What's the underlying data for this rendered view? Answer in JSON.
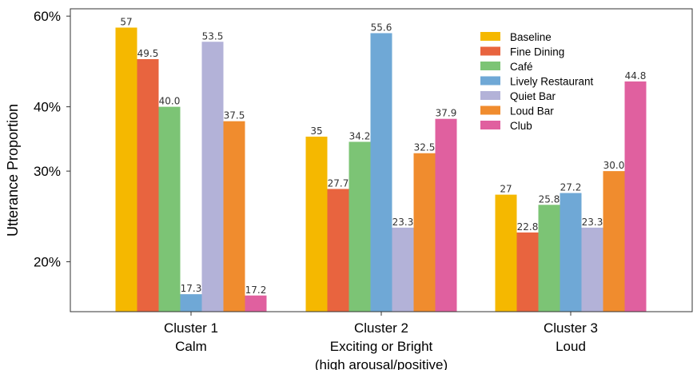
{
  "chart_data": {
    "type": "bar",
    "ylabel": "Utterance Proportion",
    "xlabel": "",
    "y_scale": "log",
    "ylim": [
      16,
      62
    ],
    "yticks": [
      {
        "value": 20,
        "label": "20%"
      },
      {
        "value": 30,
        "label": "30%"
      },
      {
        "value": 40,
        "label": "40%"
      },
      {
        "value": 60,
        "label": "60%"
      }
    ],
    "categories": [
      [
        "Cluster 1",
        "Calm"
      ],
      [
        "Cluster 2",
        "Exciting or Bright",
        "(high arousal/positive)"
      ],
      [
        "Cluster 3",
        "Loud"
      ]
    ],
    "series": [
      {
        "name": "Baseline",
        "color": "#f5b800",
        "values": [
          57,
          35,
          27
        ],
        "labels": [
          "57",
          "35",
          "27"
        ]
      },
      {
        "name": "Fine Dining",
        "color": "#e8643f",
        "values": [
          49.5,
          27.7,
          22.8
        ],
        "labels": [
          "49.5",
          "27.7",
          "22.8"
        ]
      },
      {
        "name": "Café",
        "color": "#7cc475",
        "values": [
          40.0,
          34.2,
          25.8
        ],
        "labels": [
          "40.0",
          "34.2",
          "25.8"
        ]
      },
      {
        "name": "Lively Restaurant",
        "color": "#6fa8d6",
        "values": [
          17.3,
          55.6,
          27.2
        ],
        "labels": [
          "17.3",
          "55.6",
          "27.2"
        ]
      },
      {
        "name": "Quiet Bar",
        "color": "#b3b2d8",
        "values": [
          53.5,
          23.3,
          23.3
        ],
        "labels": [
          "53.5",
          "23.3",
          "23.3"
        ]
      },
      {
        "name": "Loud Bar",
        "color": "#f08c2e",
        "values": [
          37.5,
          32.5,
          30.0
        ],
        "labels": [
          "37.5",
          "32.5",
          "30.0"
        ]
      },
      {
        "name": "Club",
        "color": "#e0609f",
        "values": [
          17.2,
          37.9,
          44.8
        ],
        "labels": [
          "17.2",
          "37.9",
          "44.8"
        ]
      }
    ],
    "legend_position": "top-right",
    "grid": false
  }
}
